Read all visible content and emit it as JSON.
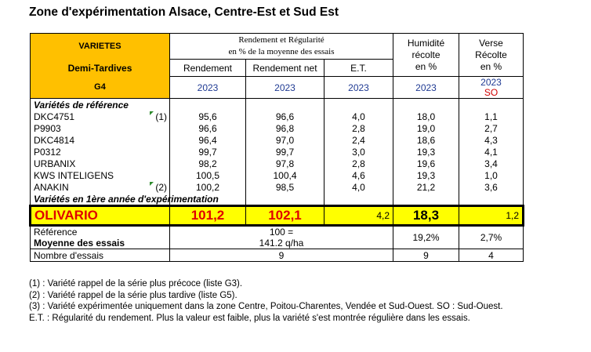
{
  "title": "Zone d'expérimentation Alsace, Centre-Est et Sud Est",
  "header": {
    "varietes": "VARIETES",
    "demi_tardives": "Demi-Tardives",
    "group": "G4",
    "rendement_title_1": "Rendement et Régularité",
    "rendement_title_2": "en % de la moyenne des essais",
    "humidite_1": "Humidité",
    "humidite_2": "récolte",
    "humidite_3": "en %",
    "verse_1": "Verse",
    "verse_2": "Récolte",
    "verse_3": "en %",
    "col_rendement": "Rendement",
    "col_rendement_net": "Rendement net",
    "col_et": "E.T.",
    "year": "2023",
    "so": "SO"
  },
  "section_reference": "Variétés de référence",
  "reference_rows": [
    {
      "name": "DKC4751",
      "note": "(1)",
      "flag": true,
      "rendement": "95,6",
      "rendement_net": "96,6",
      "et": "4,0",
      "humidite": "18,0",
      "verse": "1,1"
    },
    {
      "name": "P9903",
      "note": "",
      "flag": false,
      "rendement": "96,6",
      "rendement_net": "96,8",
      "et": "2,8",
      "humidite": "19,0",
      "verse": "2,7"
    },
    {
      "name": "DKC4814",
      "note": "",
      "flag": false,
      "rendement": "96,4",
      "rendement_net": "97,0",
      "et": "2,4",
      "humidite": "18,6",
      "verse": "4,3"
    },
    {
      "name": "P0312",
      "note": "",
      "flag": false,
      "rendement": "99,7",
      "rendement_net": "99,7",
      "et": "3,0",
      "humidite": "19,3",
      "verse": "4,1"
    },
    {
      "name": "URBANIX",
      "note": "",
      "flag": false,
      "rendement": "98,2",
      "rendement_net": "97,8",
      "et": "2,8",
      "humidite": "19,6",
      "verse": "3,4"
    },
    {
      "name": "KWS INTELIGENS",
      "note": "",
      "flag": false,
      "rendement": "100,5",
      "rendement_net": "100,4",
      "et": "4,6",
      "humidite": "19,3",
      "verse": "1,0"
    },
    {
      "name": "ANAKIN",
      "note": "(2)",
      "flag": true,
      "rendement": "100,2",
      "rendement_net": "98,5",
      "et": "4,0",
      "humidite": "21,2",
      "verse": "3,6"
    }
  ],
  "section_first_year": "Variétés en 1ère année d'expérimentation",
  "highlight": {
    "name": "OLIVARIO",
    "rendement": "101,2",
    "rendement_net": "102,1",
    "et": "4,2",
    "humidite": "18,3",
    "verse": "1,2"
  },
  "reference_block": {
    "label_1": "Référence",
    "label_2": "Moyenne des essais",
    "value_1": "100 =",
    "value_2": "141.2 q/ha",
    "humidite": "19,2%",
    "verse": "2,7%"
  },
  "nombre": {
    "label": "Nombre d'essais",
    "rendement": "9",
    "humidite": "9",
    "verse": "4"
  },
  "notes": [
    "(1) : Variété rappel de la série plus précoce (liste G3).",
    "(2) : Variété rappel de la série plus tardive (liste G5).",
    "(3) : Variété expérimentée uniquement dans la zone Centre, Poitou-Charentes, Vendée et Sud-Ouest. SO : Sud-Ouest.",
    "E.T. : Régularité du rendement. Plus la valeur est faible, plus la variété s'est montrée régulière dans les essais."
  ]
}
